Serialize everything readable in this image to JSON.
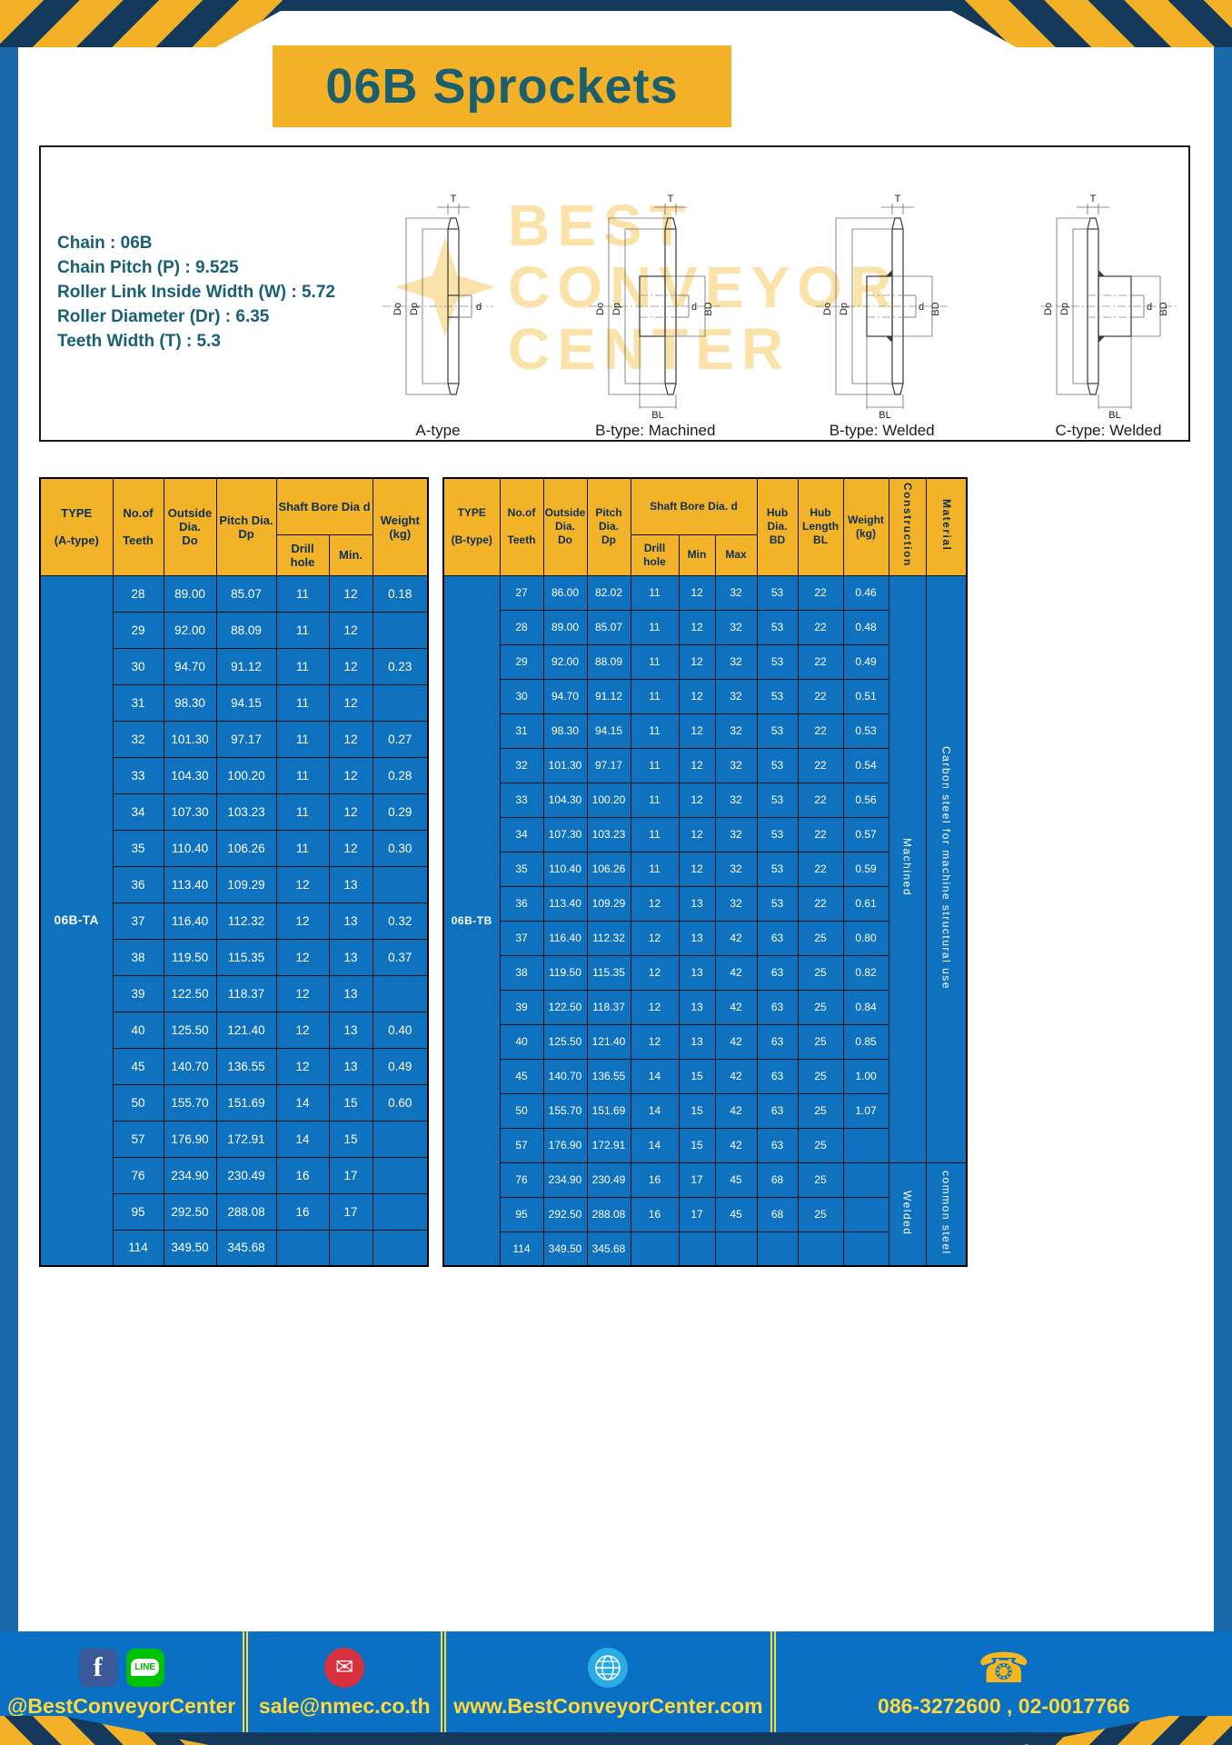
{
  "title": "06B Sprockets",
  "specs": {
    "lines": [
      "Chain : 06B",
      "Chain Pitch (P) : 9.525",
      "Roller Link Inside Width (W) : 5.72",
      "Roller Diameter (Dr) : 6.35",
      "Teeth Width (T) : 5.3"
    ]
  },
  "watermark": {
    "line1": "BEST",
    "line2": "CONVEYOR",
    "line3": "CENTER"
  },
  "drawings": [
    {
      "label": "A-type",
      "dims": {
        "t": "T",
        "do": "Do",
        "dp": "Dp",
        "d": "d"
      }
    },
    {
      "label": "B-type: Machined",
      "dims": {
        "t": "T",
        "do": "Do",
        "dp": "Dp",
        "d": "d",
        "bd": "BD",
        "bl": "BL"
      }
    },
    {
      "label": "B-type: Welded",
      "dims": {
        "t": "T",
        "do": "Do",
        "dp": "Dp",
        "d": "d",
        "bd": "BD",
        "bl": "BL"
      }
    },
    {
      "label": "C-type: Welded",
      "dims": {
        "t": "T",
        "do": "Do",
        "dp": "Dp",
        "d": "d",
        "bd": "BD",
        "bl": "BL"
      }
    }
  ],
  "table_a": {
    "head": {
      "type": "TYPE\n\n(A-type)",
      "teeth": "No.of\n\nTeeth",
      "outside": "Outside\nDia.\nDo",
      "pitch": "Pitch Dia.\nDp",
      "shaft": "Shaft Bore Dia d",
      "drill": "Drill hole",
      "min": "Min.",
      "weight": "Weight\n(kg)"
    },
    "type_value": "06B-TA",
    "rows": [
      [
        "28",
        "89.00",
        "85.07",
        "11",
        "12",
        "0.18"
      ],
      [
        "29",
        "92.00",
        "88.09",
        "11",
        "12",
        ""
      ],
      [
        "30",
        "94.70",
        "91.12",
        "11",
        "12",
        "0.23"
      ],
      [
        "31",
        "98.30",
        "94.15",
        "11",
        "12",
        ""
      ],
      [
        "32",
        "101.30",
        "97.17",
        "11",
        "12",
        "0.27"
      ],
      [
        "33",
        "104.30",
        "100.20",
        "11",
        "12",
        "0.28"
      ],
      [
        "34",
        "107.30",
        "103.23",
        "11",
        "12",
        "0.29"
      ],
      [
        "35",
        "110.40",
        "106.26",
        "11",
        "12",
        "0.30"
      ],
      [
        "36",
        "113.40",
        "109.29",
        "12",
        "13",
        ""
      ],
      [
        "37",
        "116.40",
        "112.32",
        "12",
        "13",
        "0.32"
      ],
      [
        "38",
        "119.50",
        "115.35",
        "12",
        "13",
        "0.37"
      ],
      [
        "39",
        "122.50",
        "118.37",
        "12",
        "13",
        ""
      ],
      [
        "40",
        "125.50",
        "121.40",
        "12",
        "13",
        "0.40"
      ],
      [
        "45",
        "140.70",
        "136.55",
        "12",
        "13",
        "0.49"
      ],
      [
        "50",
        "155.70",
        "151.69",
        "14",
        "15",
        "0.60"
      ],
      [
        "57",
        "176.90",
        "172.91",
        "14",
        "15",
        ""
      ],
      [
        "76",
        "234.90",
        "230.49",
        "16",
        "17",
        ""
      ],
      [
        "95",
        "292.50",
        "288.08",
        "16",
        "17",
        ""
      ],
      [
        "114",
        "349.50",
        "345.68",
        "",
        "",
        ""
      ]
    ]
  },
  "table_b": {
    "head": {
      "type": "TYPE\n\n(B-type)",
      "teeth": "No.of\n\nTeeth",
      "outside": "Outside\nDia.\nDo",
      "pitch": "Pitch\nDia.\nDp",
      "shaft": "Shaft Bore Dia. d",
      "drill": "Drill hole",
      "min": "Min",
      "max": "Max",
      "hub_dia": "Hub\nDia.\nBD",
      "hub_len": "Hub\nLength\nBL",
      "weight": "Weight\n(kg)",
      "construction": "Construction",
      "material": "Material"
    },
    "type_value": "06B-TB",
    "rows": [
      [
        "27",
        "86.00",
        "82.02",
        "11",
        "12",
        "32",
        "53",
        "22",
        "0.46"
      ],
      [
        "28",
        "89.00",
        "85.07",
        "11",
        "12",
        "32",
        "53",
        "22",
        "0.48"
      ],
      [
        "29",
        "92.00",
        "88.09",
        "11",
        "12",
        "32",
        "53",
        "22",
        "0.49"
      ],
      [
        "30",
        "94.70",
        "91.12",
        "11",
        "12",
        "32",
        "53",
        "22",
        "0.51"
      ],
      [
        "31",
        "98.30",
        "94.15",
        "11",
        "12",
        "32",
        "53",
        "22",
        "0.53"
      ],
      [
        "32",
        "101.30",
        "97.17",
        "11",
        "12",
        "32",
        "53",
        "22",
        "0.54"
      ],
      [
        "33",
        "104.30",
        "100.20",
        "11",
        "12",
        "32",
        "53",
        "22",
        "0.56"
      ],
      [
        "34",
        "107.30",
        "103.23",
        "11",
        "12",
        "32",
        "53",
        "22",
        "0.57"
      ],
      [
        "35",
        "110.40",
        "106.26",
        "11",
        "12",
        "32",
        "53",
        "22",
        "0.59"
      ],
      [
        "36",
        "113.40",
        "109.29",
        "12",
        "13",
        "32",
        "53",
        "22",
        "0.61"
      ],
      [
        "37",
        "116.40",
        "112.32",
        "12",
        "13",
        "42",
        "63",
        "25",
        "0.80"
      ],
      [
        "38",
        "119.50",
        "115.35",
        "12",
        "13",
        "42",
        "63",
        "25",
        "0.82"
      ],
      [
        "39",
        "122.50",
        "118.37",
        "12",
        "13",
        "42",
        "63",
        "25",
        "0.84"
      ],
      [
        "40",
        "125.50",
        "121.40",
        "12",
        "13",
        "42",
        "63",
        "25",
        "0.85"
      ],
      [
        "45",
        "140.70",
        "136.55",
        "14",
        "15",
        "42",
        "63",
        "25",
        "1.00"
      ],
      [
        "50",
        "155.70",
        "151.69",
        "14",
        "15",
        "42",
        "63",
        "25",
        "1.07"
      ],
      [
        "57",
        "176.90",
        "172.91",
        "14",
        "15",
        "42",
        "63",
        "25",
        ""
      ],
      [
        "76",
        "234.90",
        "230.49",
        "16",
        "17",
        "45",
        "68",
        "25",
        ""
      ],
      [
        "95",
        "292.50",
        "288.08",
        "16",
        "17",
        "45",
        "68",
        "25",
        ""
      ],
      [
        "114",
        "349.50",
        "345.68",
        "",
        "",
        "",
        "",
        "",
        ""
      ]
    ],
    "construction_groups": [
      {
        "label": "Machined",
        "span": 17
      },
      {
        "label": "Welded",
        "span": 3
      }
    ],
    "material_groups": [
      {
        "label": "Carbon steel for machine structural use",
        "span": 17
      },
      {
        "label": "common steel",
        "span": 3
      }
    ]
  },
  "footer": {
    "facebook_glyph": "f",
    "line_label": "LINE",
    "mail_glyph": "✉",
    "phone_glyph": "☎",
    "sections": [
      {
        "text": "@BestConveyorCenter"
      },
      {
        "text": "sale@nmec.co.th"
      },
      {
        "text": "www.BestConveyorCenter.com"
      },
      {
        "text": "086-3272600 , 02-0017766"
      }
    ]
  },
  "colors": {
    "accent_yellow": "#f2b127",
    "frame_blue": "#1b69aa",
    "table_blue": "#0f72bf",
    "header_yellow": "#f3b329",
    "header_text": "#0d3050",
    "teal_text": "#186074",
    "footer_blue": "#0a70c4",
    "footer_text_yellow": "#ffd83a",
    "navy": "#14395a"
  }
}
